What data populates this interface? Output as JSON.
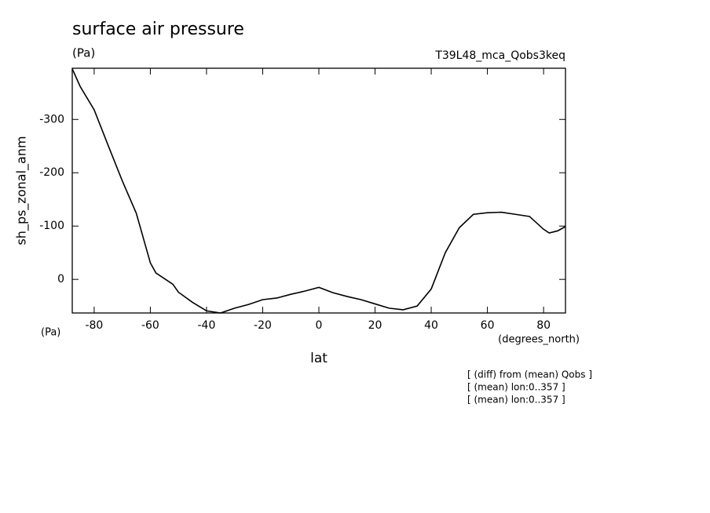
{
  "chart_data": {
    "type": "line",
    "title": "surface air pressure",
    "units": "(Pa)",
    "experiment": "T39L48_mca_Qobs3keq",
    "y_label": "sh_ps_zonal_anm",
    "y_units": "(Pa)",
    "x_units": "(degrees_north)",
    "x_label": "lat",
    "notes": [
      "[ (diff) from (mean) Qobs ]",
      "[ (mean) lon:0..357 ]",
      "[ (mean) lon:0..357 ]"
    ],
    "x": [
      -87.8,
      -85,
      -80,
      -75,
      -70,
      -65,
      -60,
      -58,
      -52,
      -50,
      -45,
      -40,
      -35,
      -30,
      -25,
      -20,
      -15,
      -10,
      -5,
      0,
      5,
      10,
      15,
      20,
      25,
      30,
      35,
      40,
      45,
      50,
      55,
      60,
      65,
      70,
      75,
      80,
      82,
      85,
      87.8
    ],
    "series": [
      {
        "name": "sh_ps_zonal_anm",
        "color": "#000000",
        "values": [
          -395,
          -362,
          -318,
          -251,
          -185,
          -124,
          -31,
          -12,
          9,
          24,
          43,
          59,
          63,
          54,
          47,
          38,
          35,
          28,
          22,
          15,
          25,
          32,
          38,
          46,
          54,
          57,
          50,
          18,
          -50,
          -97,
          -122,
          -125,
          -126,
          -122,
          -118,
          -94,
          -87,
          -91,
          -99
        ]
      }
    ],
    "xlim": [
      -87.8,
      87.8
    ],
    "xticks": [
      -80,
      -60,
      -40,
      -20,
      0,
      20,
      40,
      60,
      80
    ],
    "ylim": [
      63,
      -396
    ],
    "yticks": [
      -300,
      -200,
      -100,
      0
    ]
  }
}
